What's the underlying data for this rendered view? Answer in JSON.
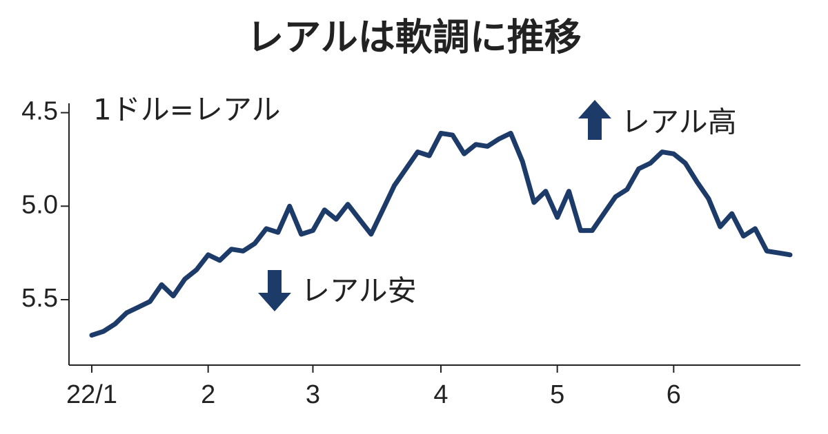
{
  "chart_data": {
    "type": "line",
    "title": "レアルは軟調に推移",
    "unit_label": "1ドル=レアル",
    "annotations": [
      "レアル高",
      "レアル安"
    ],
    "categories": [
      "22/1",
      null,
      null,
      null,
      null,
      null,
      null,
      null,
      null,
      null,
      "2",
      null,
      null,
      null,
      null,
      null,
      null,
      null,
      null,
      "3",
      null,
      null,
      null,
      null,
      null,
      null,
      null,
      null,
      null,
      null,
      "4",
      null,
      null,
      null,
      null,
      null,
      null,
      null,
      null,
      null,
      "5",
      null,
      null,
      null,
      null,
      null,
      null,
      null,
      null,
      null,
      "6",
      null,
      null,
      null,
      null,
      null,
      null,
      null,
      null,
      null,
      null
    ],
    "series": [
      {
        "color": "#1d3b68",
        "values": [
          5.69,
          5.67,
          5.63,
          5.57,
          5.54,
          5.51,
          5.42,
          5.48,
          5.39,
          5.34,
          5.26,
          5.29,
          5.23,
          5.24,
          5.2,
          5.12,
          5.14,
          5.0,
          5.15,
          5.13,
          5.02,
          5.07,
          4.99,
          5.07,
          5.15,
          5.02,
          4.89,
          4.8,
          4.71,
          4.73,
          4.61,
          4.62,
          4.72,
          4.67,
          4.68,
          4.64,
          4.61,
          4.76,
          4.98,
          4.92,
          5.06,
          4.92,
          5.13,
          5.13,
          5.04,
          4.95,
          4.91,
          4.8,
          4.77,
          4.71,
          4.72,
          4.77,
          4.87,
          4.96,
          5.11,
          5.04,
          5.16,
          5.12,
          5.24,
          5.25,
          5.26
        ]
      }
    ],
    "ylim": [
      4.45,
      5.85
    ],
    "y_reversed": true,
    "yticks": [
      4.5,
      {
        "value": 5,
        "label": "5.0"
      },
      5.5
    ],
    "grid": false
  }
}
